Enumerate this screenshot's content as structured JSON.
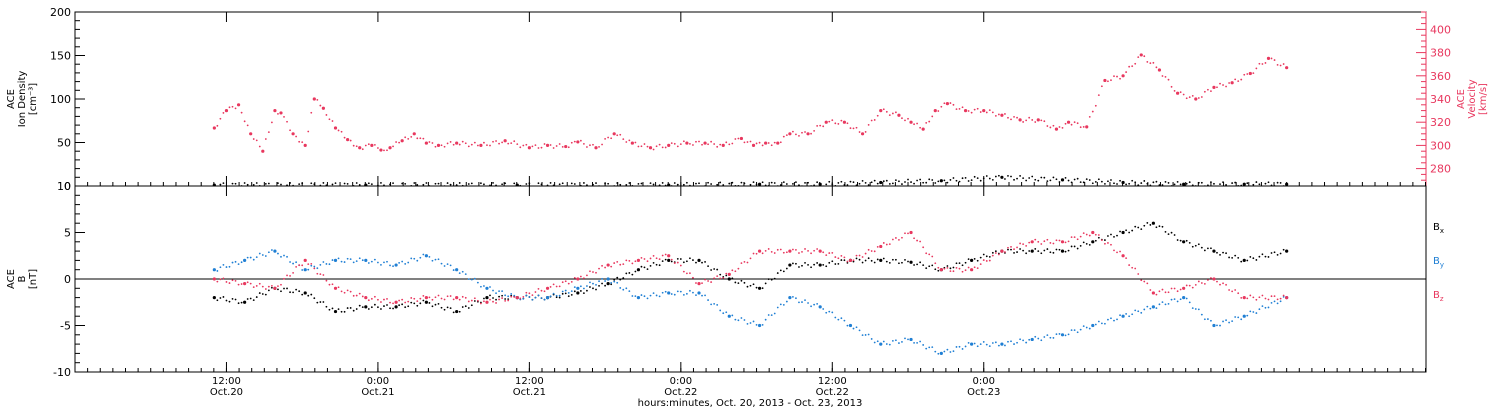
{
  "chart_data": [
    {
      "type": "scatter",
      "panel": "top",
      "left_axis": {
        "label_lines": [
          "ACE",
          "Ion Density",
          "[cm⁻³]"
        ],
        "ylim": [
          0,
          200
        ],
        "ticks": [
          "0",
          "50",
          "100",
          "150",
          "200"
        ],
        "color": "#000000"
      },
      "right_axis": {
        "label_lines": [
          "ACE",
          "Velocity",
          "[km/s]"
        ],
        "ylim": [
          265,
          415
        ],
        "ticks": [
          "280",
          "300",
          "320",
          "340",
          "360",
          "380",
          "400"
        ],
        "color": "#e8375e"
      },
      "series": [
        {
          "axis": "right",
          "color": "#e8375e",
          "x": [
            0,
            0.04,
            0.08,
            0.12,
            0.16,
            0.2,
            0.22,
            0.26,
            0.3,
            0.33,
            0.36,
            0.4,
            0.44,
            0.48,
            0.52,
            0.55,
            0.58,
            0.62,
            0.66,
            0.7,
            0.74,
            0.8,
            0.88,
            0.96,
            1.04,
            1.1,
            1.16,
            1.2,
            1.26,
            1.32,
            1.38,
            1.44,
            1.5,
            1.56,
            1.62,
            1.68,
            1.74,
            1.78,
            1.82,
            1.86,
            1.9,
            1.96,
            2.02,
            2.08,
            2.14,
            2.2,
            2.26,
            2.3,
            2.34,
            2.38,
            2.42,
            2.48,
            2.54,
            2.6,
            2.66,
            2.72,
            2.78,
            2.82,
            2.88,
            2.94,
            3.0,
            3.06,
            3.12,
            3.18,
            3.24,
            3.3,
            3.36,
            3.42,
            3.48,
            3.54
          ],
          "values": [
            315,
            330,
            335,
            310,
            295,
            330,
            328,
            310,
            300,
            340,
            332,
            315,
            305,
            298,
            300,
            296,
            298,
            304,
            310,
            302,
            300,
            302,
            300,
            304,
            298,
            300,
            299,
            303,
            298,
            310,
            302,
            298,
            300,
            302,
            302,
            300,
            306,
            300,
            302,
            302,
            310,
            310,
            320,
            320,
            310,
            330,
            326,
            320,
            314,
            330,
            336,
            330,
            330,
            326,
            322,
            322,
            314,
            320,
            316,
            356,
            360,
            378,
            365,
            345,
            340,
            350,
            354,
            362,
            375,
            367
          ]
        },
        {
          "axis": "left",
          "color": "#000000",
          "x": [
            0,
            0.5,
            1.0,
            1.5,
            1.8,
            2.0,
            2.2,
            2.4,
            2.6,
            2.8,
            3.0,
            3.2,
            3.4,
            3.54
          ],
          "values": [
            1,
            1,
            1,
            1,
            2,
            2,
            4,
            6,
            10,
            7,
            4,
            2,
            2,
            2
          ]
        }
      ]
    },
    {
      "type": "scatter",
      "panel": "bottom",
      "left_axis": {
        "label_lines": [
          "ACE",
          "B",
          "[nT]"
        ],
        "ylim": [
          -10,
          10
        ],
        "ticks": [
          "-10",
          "-5",
          "0",
          "5",
          "10"
        ],
        "color": "#000000"
      },
      "zero_line": true,
      "series": [
        {
          "name": "B",
          "subscript": "x",
          "color": "#000000",
          "x": [
            0,
            0.1,
            0.2,
            0.3,
            0.4,
            0.5,
            0.6,
            0.7,
            0.8,
            0.9,
            1.0,
            1.1,
            1.2,
            1.3,
            1.4,
            1.5,
            1.6,
            1.7,
            1.8,
            1.9,
            2.0,
            2.1,
            2.2,
            2.3,
            2.4,
            2.5,
            2.6,
            2.7,
            2.8,
            2.9,
            3.0,
            3.1,
            3.2,
            3.3,
            3.4,
            3.54
          ],
          "values": [
            -2,
            -2.5,
            -1,
            -1.5,
            -3.5,
            -3,
            -3,
            -2.5,
            -3.5,
            -2,
            -2,
            -2,
            -1.5,
            -0.5,
            1,
            2,
            2,
            0,
            -1,
            1.5,
            1.5,
            2,
            2,
            1.8,
            1,
            2,
            3,
            3,
            3,
            4,
            5,
            6,
            4,
            3,
            2,
            3
          ]
        },
        {
          "name": "B",
          "subscript": "y",
          "color": "#1f7fd4",
          "x": [
            0,
            0.1,
            0.2,
            0.3,
            0.4,
            0.5,
            0.6,
            0.7,
            0.8,
            0.9,
            1.0,
            1.1,
            1.2,
            1.3,
            1.4,
            1.5,
            1.6,
            1.7,
            1.8,
            1.9,
            2.0,
            2.1,
            2.2,
            2.3,
            2.4,
            2.5,
            2.6,
            2.7,
            2.8,
            2.9,
            3.0,
            3.1,
            3.2,
            3.3,
            3.4,
            3.54
          ],
          "values": [
            1,
            2,
            3,
            1,
            2,
            2,
            1.5,
            2.5,
            1,
            -1,
            -2,
            -2,
            -1,
            0,
            -2,
            -1.5,
            -1.5,
            -4,
            -5,
            -2,
            -3,
            -5,
            -7,
            -6.5,
            -8,
            -7,
            -7,
            -6.5,
            -6,
            -5,
            -4,
            -3,
            -2,
            -5,
            -4,
            -2
          ]
        },
        {
          "name": "B",
          "subscript": "z",
          "color": "#e8375e",
          "x": [
            0,
            0.1,
            0.2,
            0.3,
            0.4,
            0.5,
            0.6,
            0.7,
            0.8,
            0.9,
            1.0,
            1.1,
            1.2,
            1.3,
            1.4,
            1.5,
            1.6,
            1.7,
            1.8,
            1.9,
            2.0,
            2.1,
            2.2,
            2.3,
            2.4,
            2.5,
            2.6,
            2.7,
            2.8,
            2.9,
            3.0,
            3.1,
            3.2,
            3.3,
            3.4,
            3.54
          ],
          "values": [
            0,
            -0.5,
            -1,
            2,
            -1,
            -2,
            -2.5,
            -2,
            -2,
            -2.5,
            -2,
            -1,
            0,
            1.5,
            2,
            2.5,
            -0.5,
            0.5,
            3,
            3,
            3,
            2,
            3.5,
            5,
            1,
            1,
            3,
            4,
            4,
            5,
            2.5,
            -1.5,
            -1,
            0,
            -2,
            -2
          ]
        }
      ],
      "legend_position": "right"
    }
  ],
  "x_axis": {
    "xlim": [
      -0.46,
      4.0
    ],
    "tick_labels": [
      {
        "x": 0.04,
        "time": "12:00",
        "date": "Oct.20"
      },
      {
        "x": 0.54,
        "time": "0:00",
        "date": "Oct.21"
      },
      {
        "x": 1.04,
        "time": "12:00",
        "date": "Oct.21"
      },
      {
        "x": 1.54,
        "time": "0:00",
        "date": "Oct.22"
      },
      {
        "x": 2.04,
        "time": "12:00",
        "date": "Oct.22"
      },
      {
        "x": 2.54,
        "time": "0:00",
        "date": "Oct.23"
      }
    ],
    "title": "hours:minutes, Oct. 20, 2013 - Oct. 23, 2013"
  }
}
